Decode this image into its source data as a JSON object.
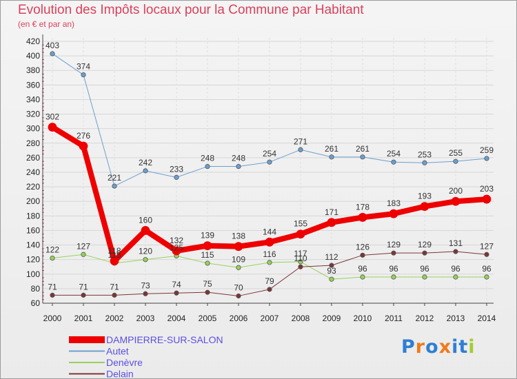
{
  "chart_data": {
    "type": "line",
    "title": "Evolution des Impôts locaux pour la Commune par Habitant",
    "subtitle": "(en € et par an)",
    "xlabel": "",
    "ylabel": "",
    "ylim": [
      60,
      420
    ],
    "y_ticks": [
      60,
      80,
      100,
      120,
      140,
      160,
      180,
      200,
      220,
      240,
      260,
      280,
      300,
      320,
      340,
      360,
      380,
      400,
      420
    ],
    "categories": [
      "2000",
      "2001",
      "2002",
      "2003",
      "2004",
      "2005",
      "2006",
      "2007",
      "2008",
      "2009",
      "2010",
      "2011",
      "2012",
      "2013",
      "2014"
    ],
    "grid": true,
    "legend_position": "bottom-left",
    "series": [
      {
        "name": "DAMPIERRE-SUR-SALON",
        "color": "#ee0000",
        "width": 8,
        "values": [
          302,
          276,
          118,
          160,
          132,
          139,
          138,
          144,
          155,
          171,
          178,
          183,
          193,
          200,
          203
        ]
      },
      {
        "name": "Autet",
        "color": "#6b9fd0",
        "width": 1,
        "values": [
          403,
          374,
          221,
          242,
          233,
          248,
          248,
          254,
          271,
          261,
          261,
          254,
          253,
          255,
          259
        ]
      },
      {
        "name": "Denèvre",
        "color": "#96d25a",
        "width": 1,
        "values": [
          122,
          127,
          115,
          120,
          125,
          115,
          109,
          116,
          117,
          93,
          96,
          96,
          96,
          96,
          96
        ]
      },
      {
        "name": "Delain",
        "color": "#7b3538",
        "width": 1,
        "values": [
          71,
          71,
          71,
          73,
          74,
          75,
          70,
          79,
          110,
          112,
          126,
          129,
          129,
          131,
          127
        ]
      }
    ]
  },
  "brand": {
    "letters": [
      "P",
      "r",
      "o",
      "x",
      "i",
      "t",
      "i"
    ],
    "colors": [
      "#2f7fd3",
      "#f07a1c",
      "#2f7fd3",
      "#f07a1c",
      "#2f7fd3",
      "#2f7fd3",
      "#a5cc2f"
    ]
  }
}
